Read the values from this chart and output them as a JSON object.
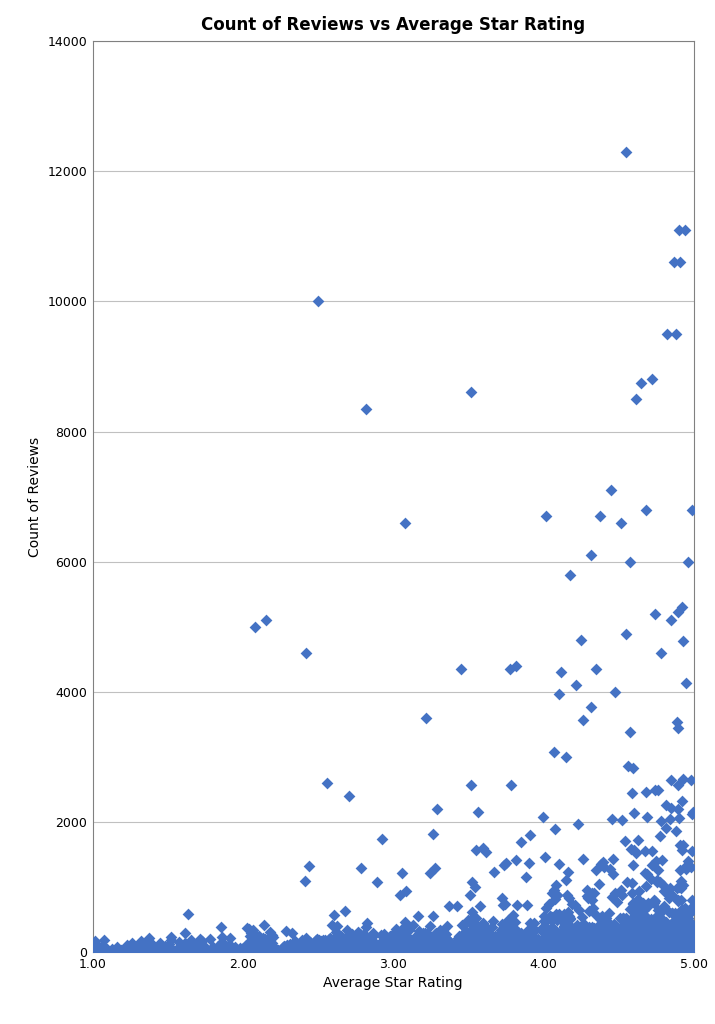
{
  "title": "Count of Reviews vs Average Star Rating",
  "xlabel": "Average Star Rating",
  "ylabel": "Count of Reviews",
  "xlim": [
    1.0,
    5.0
  ],
  "ylim": [
    0,
    14000
  ],
  "xticks": [
    1.0,
    2.0,
    3.0,
    4.0,
    5.0
  ],
  "yticks": [
    0,
    2000,
    4000,
    6000,
    8000,
    10000,
    12000,
    14000
  ],
  "marker_color": "#4472C4",
  "marker": "D",
  "marker_size": 6,
  "background_color": "#FFFFFF",
  "seed": 12345,
  "notable_x": [
    4.55,
    4.9,
    4.87,
    4.82,
    4.72,
    4.65,
    4.62,
    4.45,
    4.32,
    4.18,
    4.68,
    4.38,
    2.5,
    2.15,
    3.52,
    3.08,
    2.82,
    4.94,
    4.91,
    4.88,
    2.42,
    2.08,
    4.02,
    3.82,
    4.12,
    4.52,
    4.74,
    4.78,
    4.92,
    2.56,
    3.45,
    3.22,
    4.25,
    4.35,
    4.48,
    4.58,
    4.85,
    4.96,
    4.99,
    3.78
  ],
  "notable_y": [
    12300,
    11100,
    10600,
    9500,
    8800,
    8750,
    8500,
    7100,
    6100,
    5800,
    6800,
    6700,
    10000,
    5100,
    8600,
    6600,
    8350,
    11100,
    10600,
    9500,
    4600,
    5000,
    6700,
    4400,
    4300,
    6600,
    5200,
    4600,
    5300,
    2600,
    4350,
    3600,
    4800,
    4350,
    4000,
    6000,
    5100,
    6000,
    6800,
    4350
  ]
}
